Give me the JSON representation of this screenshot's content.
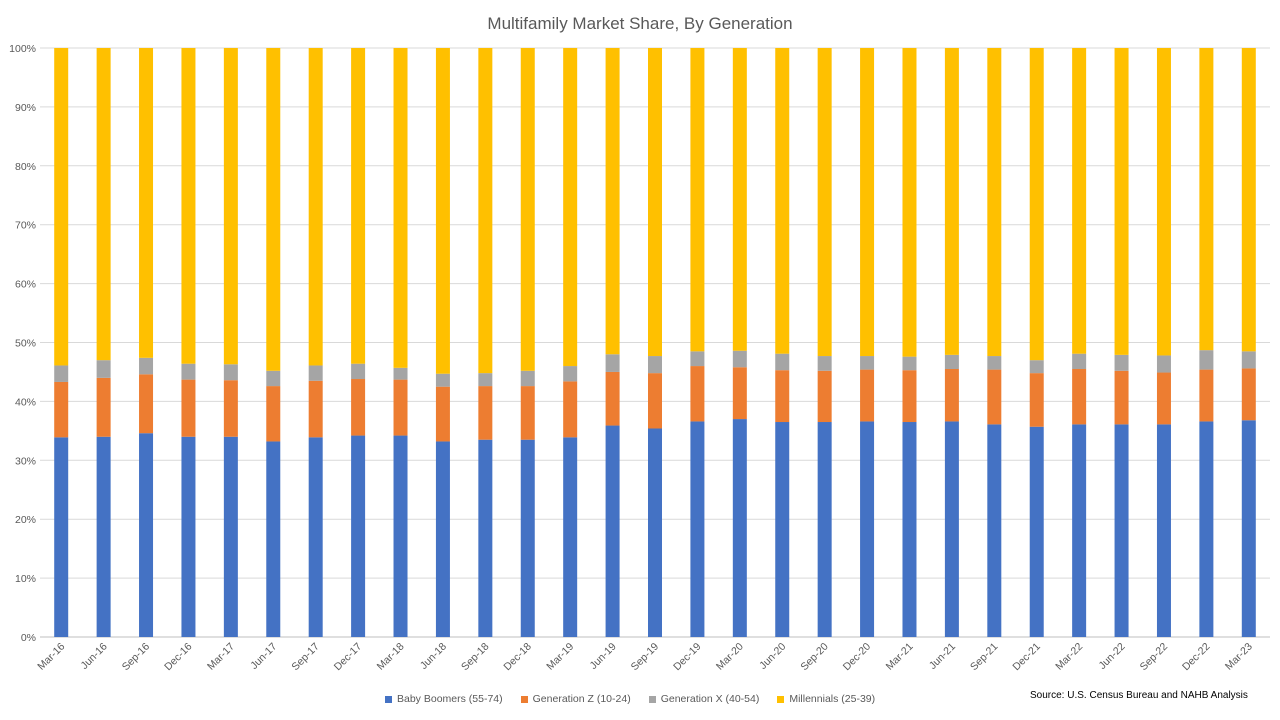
{
  "chart_data": {
    "type": "bar",
    "stacked": true,
    "title": "Multifamily Market Share, By Generation",
    "xlabel": "",
    "ylabel": "",
    "ylim": [
      0,
      100
    ],
    "y_ticks": [
      "0%",
      "10%",
      "20%",
      "30%",
      "40%",
      "50%",
      "60%",
      "70%",
      "80%",
      "90%",
      "100%"
    ],
    "grid": true,
    "legend_position": "bottom",
    "categories": [
      "Mar-16",
      "Jun-16",
      "Sep-16",
      "Dec-16",
      "Mar-17",
      "Jun-17",
      "Sep-17",
      "Dec-17",
      "Mar-18",
      "Jun-18",
      "Sep-18",
      "Dec-18",
      "Mar-19",
      "Jun-19",
      "Sep-19",
      "Dec-19",
      "Mar-20",
      "Jun-20",
      "Sep-20",
      "Dec-20",
      "Mar-21",
      "Jun-21",
      "Sep-21",
      "Dec-21",
      "Mar-22",
      "Jun-22",
      "Sep-22",
      "Dec-22",
      "Mar-23"
    ],
    "series": [
      {
        "name": "Baby Boomers (55-74)",
        "color": "#4472C4",
        "values": [
          33.9,
          34.0,
          34.6,
          34.0,
          34.0,
          33.2,
          33.9,
          34.2,
          34.2,
          33.2,
          33.5,
          33.5,
          33.9,
          35.9,
          35.4,
          36.6,
          37.0,
          36.5,
          36.5,
          36.6,
          36.5,
          36.6,
          36.1,
          35.7,
          36.1,
          36.1,
          36.1,
          36.6,
          36.8
        ]
      },
      {
        "name": "Generation Z (10-24)",
        "color": "#ED7D31",
        "values": [
          9.4,
          10.0,
          10.0,
          9.7,
          9.6,
          9.4,
          9.6,
          9.6,
          9.5,
          9.3,
          9.1,
          9.1,
          9.5,
          9.1,
          9.4,
          9.4,
          8.8,
          8.8,
          8.7,
          8.8,
          8.8,
          8.9,
          9.3,
          9.1,
          9.4,
          9.1,
          8.8,
          8.8,
          8.8
        ]
      },
      {
        "name": "Generation X (40-54)",
        "color": "#A5A5A5",
        "values": [
          2.8,
          3.0,
          2.8,
          2.7,
          2.7,
          2.6,
          2.6,
          2.6,
          2.0,
          2.2,
          2.2,
          2.6,
          2.6,
          3.0,
          2.9,
          2.5,
          2.8,
          2.8,
          2.5,
          2.3,
          2.3,
          2.4,
          2.3,
          2.2,
          2.6,
          2.7,
          2.9,
          3.3,
          2.9
        ]
      },
      {
        "name": "Millennials (25-39)",
        "color": "#FFC000",
        "values": [
          53.9,
          53.0,
          52.6,
          53.6,
          53.7,
          54.8,
          53.9,
          53.6,
          54.3,
          55.3,
          55.2,
          54.8,
          54.0,
          52.0,
          52.3,
          51.5,
          51.4,
          51.9,
          52.3,
          52.3,
          52.4,
          52.1,
          52.3,
          53.0,
          51.9,
          52.1,
          52.2,
          51.3,
          51.5
        ]
      }
    ],
    "source": "Source: U.S. Census Bureau and NAHB Analysis"
  }
}
